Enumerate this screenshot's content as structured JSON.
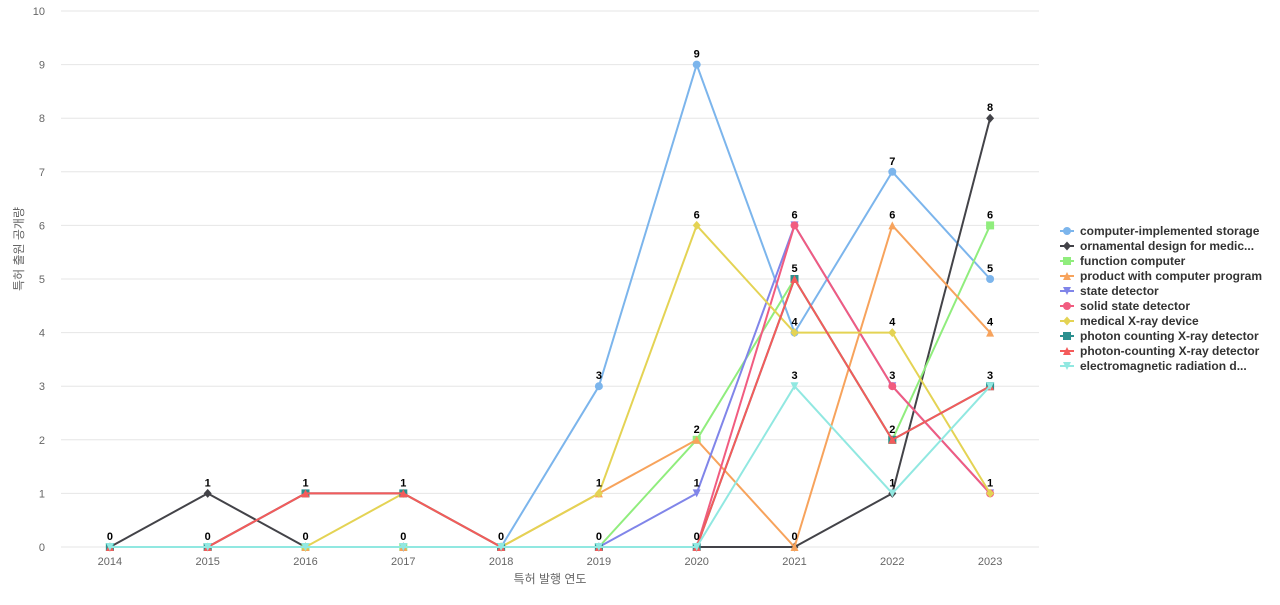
{
  "chart_data": {
    "type": "line",
    "title": "",
    "xlabel": "특허 발행 연도",
    "ylabel": "특허 출원 공개량",
    "x": [
      "2014",
      "2015",
      "2016",
      "2017",
      "2018",
      "2019",
      "2020",
      "2021",
      "2022",
      "2023"
    ],
    "ylim": [
      0,
      10
    ],
    "yticks": [
      0,
      1,
      2,
      3,
      4,
      5,
      6,
      7,
      8,
      9,
      10
    ],
    "grid": true,
    "legend_position": "right",
    "series": [
      {
        "name": "computer-implemented storage",
        "color": "#7cb5ec",
        "marker": "circle",
        "values": [
          0,
          0,
          0,
          0,
          0,
          3,
          9,
          4,
          7,
          5
        ]
      },
      {
        "name": "ornamental design for medic...",
        "color": "#434348",
        "marker": "diamond",
        "values": [
          0,
          1,
          0,
          0,
          0,
          0,
          0,
          0,
          1,
          8
        ]
      },
      {
        "name": "function computer",
        "color": "#90ed7d",
        "marker": "square",
        "values": [
          0,
          0,
          0,
          0,
          0,
          0,
          2,
          5,
          2,
          6
        ]
      },
      {
        "name": "product with computer program",
        "color": "#f7a35c",
        "marker": "triangle",
        "values": [
          0,
          0,
          0,
          0,
          0,
          1,
          2,
          0,
          6,
          4
        ]
      },
      {
        "name": "state detector",
        "color": "#8085e9",
        "marker": "triangle-down",
        "values": [
          0,
          0,
          0,
          0,
          0,
          0,
          1,
          6,
          3,
          1
        ]
      },
      {
        "name": "solid state detector",
        "color": "#f15c80",
        "marker": "circle",
        "values": [
          0,
          0,
          1,
          1,
          0,
          0,
          0,
          6,
          3,
          1
        ]
      },
      {
        "name": "medical X-ray device",
        "color": "#e4d354",
        "marker": "diamond",
        "values": [
          0,
          0,
          0,
          1,
          0,
          1,
          6,
          4,
          4,
          1
        ]
      },
      {
        "name": "photon counting X-ray detector",
        "color": "#2b908f",
        "marker": "square",
        "values": [
          0,
          0,
          1,
          1,
          0,
          0,
          0,
          5,
          2,
          3
        ]
      },
      {
        "name": "photon-counting X-ray detector",
        "color": "#f45b5b",
        "marker": "triangle",
        "values": [
          0,
          0,
          1,
          1,
          0,
          0,
          0,
          5,
          2,
          3
        ]
      },
      {
        "name": "electromagnetic radiation d...",
        "color": "#91e8e1",
        "marker": "triangle-down",
        "values": [
          0,
          0,
          0,
          0,
          0,
          0,
          0,
          3,
          1,
          3
        ]
      }
    ],
    "data_labels": [
      {
        "x": "2014",
        "y": 0,
        "text": "0"
      },
      {
        "x": "2015",
        "y": 1,
        "text": "1"
      },
      {
        "x": "2015",
        "y": 0,
        "text": "0"
      },
      {
        "x": "2016",
        "y": 1,
        "text": "1"
      },
      {
        "x": "2016",
        "y": 0,
        "text": "0"
      },
      {
        "x": "2017",
        "y": 1,
        "text": "1"
      },
      {
        "x": "2017",
        "y": 0,
        "text": "0"
      },
      {
        "x": "2018",
        "y": 0,
        "text": "0"
      },
      {
        "x": "2019",
        "y": 3,
        "text": "3"
      },
      {
        "x": "2019",
        "y": 1,
        "text": "1"
      },
      {
        "x": "2019",
        "y": 0,
        "text": "0"
      },
      {
        "x": "2020",
        "y": 9,
        "text": "9"
      },
      {
        "x": "2020",
        "y": 6,
        "text": "6"
      },
      {
        "x": "2020",
        "y": 2,
        "text": "2"
      },
      {
        "x": "2020",
        "y": 1,
        "text": "1"
      },
      {
        "x": "2020",
        "y": 0,
        "text": "0"
      },
      {
        "x": "2021",
        "y": 6,
        "text": "6"
      },
      {
        "x": "2021",
        "y": 5,
        "text": "5"
      },
      {
        "x": "2021",
        "y": 4,
        "text": "4"
      },
      {
        "x": "2021",
        "y": 3,
        "text": "3"
      },
      {
        "x": "2021",
        "y": 0,
        "text": "0"
      },
      {
        "x": "2022",
        "y": 7,
        "text": "7"
      },
      {
        "x": "2022",
        "y": 6,
        "text": "6"
      },
      {
        "x": "2022",
        "y": 4,
        "text": "4"
      },
      {
        "x": "2022",
        "y": 3,
        "text": "3"
      },
      {
        "x": "2022",
        "y": 2,
        "text": "2"
      },
      {
        "x": "2022",
        "y": 1,
        "text": "1"
      },
      {
        "x": "2023",
        "y": 8,
        "text": "8"
      },
      {
        "x": "2023",
        "y": 6,
        "text": "6"
      },
      {
        "x": "2023",
        "y": 5,
        "text": "5"
      },
      {
        "x": "2023",
        "y": 4,
        "text": "4"
      },
      {
        "x": "2023",
        "y": 3,
        "text": "3"
      },
      {
        "x": "2023",
        "y": 1,
        "text": "1"
      }
    ]
  }
}
